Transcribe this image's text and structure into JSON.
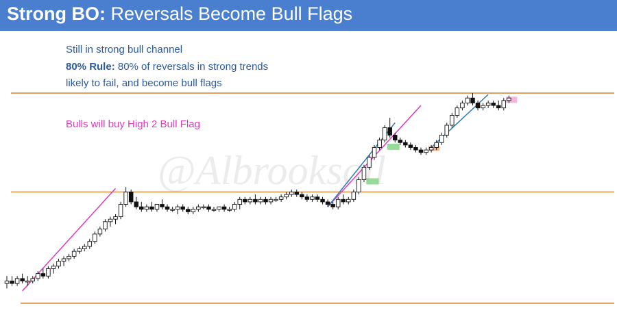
{
  "title": {
    "bold": "Strong BO:",
    "rest": " Reversals Become Bull Flags"
  },
  "notes": {
    "line1": "Still in strong bull channel",
    "rule_bold": "80% Rule:",
    "rule_rest": " 80% of reversals in strong trends",
    "line3": "likely to fail, and become bull flags",
    "pink": "Bulls will buy High 2 Bull Flag"
  },
  "watermark": "@Albrooksall",
  "colors": {
    "title_bg": "#4a7fd0",
    "note_blue": "#2a5aa0",
    "note_pink": "#e03ac0",
    "hline": "#d9822b",
    "pink_line": "#e03ac0",
    "blue_line": "#2a7ab0",
    "green_box": "#7fd07f",
    "orange_box": "#f0a070",
    "pink_box": "#f5a0d8",
    "candle": "#111111"
  },
  "chart_data": {
    "type": "candlestick",
    "title": "Strong BO: Reversals Become Bull Flags",
    "xlabel": "",
    "ylabel": "",
    "ylim": [
      0,
      100
    ],
    "horizontal_levels": [
      -5,
      40,
      80
    ],
    "bars": [
      {
        "o": 3,
        "h": 6,
        "l": 1,
        "c": 4
      },
      {
        "o": 4,
        "h": 6,
        "l": 2,
        "c": 3
      },
      {
        "o": 3,
        "h": 6,
        "l": 2,
        "c": 5
      },
      {
        "o": 5,
        "h": 7,
        "l": 3,
        "c": 4
      },
      {
        "o": 4,
        "h": 6,
        "l": 2,
        "c": 4
      },
      {
        "o": 4,
        "h": 6,
        "l": 3,
        "c": 5
      },
      {
        "o": 5,
        "h": 8,
        "l": 4,
        "c": 7
      },
      {
        "o": 7,
        "h": 9,
        "l": 5,
        "c": 6
      },
      {
        "o": 6,
        "h": 10,
        "l": 5,
        "c": 9
      },
      {
        "o": 9,
        "h": 11,
        "l": 7,
        "c": 10
      },
      {
        "o": 10,
        "h": 13,
        "l": 9,
        "c": 12
      },
      {
        "o": 12,
        "h": 14,
        "l": 10,
        "c": 13
      },
      {
        "o": 13,
        "h": 15,
        "l": 12,
        "c": 14
      },
      {
        "o": 14,
        "h": 17,
        "l": 13,
        "c": 16
      },
      {
        "o": 16,
        "h": 18,
        "l": 15,
        "c": 17
      },
      {
        "o": 17,
        "h": 19,
        "l": 16,
        "c": 18
      },
      {
        "o": 18,
        "h": 21,
        "l": 17,
        "c": 20
      },
      {
        "o": 20,
        "h": 24,
        "l": 19,
        "c": 23
      },
      {
        "o": 23,
        "h": 26,
        "l": 22,
        "c": 25
      },
      {
        "o": 25,
        "h": 29,
        "l": 24,
        "c": 28
      },
      {
        "o": 28,
        "h": 30,
        "l": 26,
        "c": 29
      },
      {
        "o": 29,
        "h": 31,
        "l": 27,
        "c": 30
      },
      {
        "o": 30,
        "h": 36,
        "l": 29,
        "c": 35
      },
      {
        "o": 35,
        "h": 42,
        "l": 34,
        "c": 40
      },
      {
        "o": 40,
        "h": 41,
        "l": 35,
        "c": 36
      },
      {
        "o": 36,
        "h": 38,
        "l": 33,
        "c": 34
      },
      {
        "o": 34,
        "h": 36,
        "l": 32,
        "c": 33
      },
      {
        "o": 33,
        "h": 35,
        "l": 32,
        "c": 34
      },
      {
        "o": 34,
        "h": 36,
        "l": 32,
        "c": 33
      },
      {
        "o": 33,
        "h": 35,
        "l": 32,
        "c": 35
      },
      {
        "o": 35,
        "h": 37,
        "l": 33,
        "c": 34
      },
      {
        "o": 34,
        "h": 35,
        "l": 32,
        "c": 33
      },
      {
        "o": 33,
        "h": 34,
        "l": 32,
        "c": 33
      },
      {
        "o": 33,
        "h": 35,
        "l": 31,
        "c": 34
      },
      {
        "o": 34,
        "h": 35,
        "l": 32,
        "c": 33
      },
      {
        "o": 33,
        "h": 34,
        "l": 31,
        "c": 32
      },
      {
        "o": 32,
        "h": 34,
        "l": 31,
        "c": 33
      },
      {
        "o": 33,
        "h": 35,
        "l": 32,
        "c": 34
      },
      {
        "o": 34,
        "h": 35,
        "l": 33,
        "c": 34
      },
      {
        "o": 34,
        "h": 35,
        "l": 32,
        "c": 33
      },
      {
        "o": 33,
        "h": 34,
        "l": 32,
        "c": 33
      },
      {
        "o": 33,
        "h": 34,
        "l": 32,
        "c": 34
      },
      {
        "o": 34,
        "h": 35,
        "l": 32,
        "c": 33
      },
      {
        "o": 33,
        "h": 34,
        "l": 32,
        "c": 33
      },
      {
        "o": 33,
        "h": 36,
        "l": 32,
        "c": 35
      },
      {
        "o": 35,
        "h": 38,
        "l": 33,
        "c": 37
      },
      {
        "o": 37,
        "h": 38,
        "l": 35,
        "c": 36
      },
      {
        "o": 36,
        "h": 38,
        "l": 35,
        "c": 37
      },
      {
        "o": 37,
        "h": 39,
        "l": 35,
        "c": 36
      },
      {
        "o": 36,
        "h": 38,
        "l": 35,
        "c": 37
      },
      {
        "o": 37,
        "h": 38,
        "l": 35,
        "c": 36
      },
      {
        "o": 36,
        "h": 38,
        "l": 35,
        "c": 37
      },
      {
        "o": 37,
        "h": 38,
        "l": 36,
        "c": 37
      },
      {
        "o": 37,
        "h": 39,
        "l": 36,
        "c": 38
      },
      {
        "o": 38,
        "h": 40,
        "l": 37,
        "c": 39
      },
      {
        "o": 39,
        "h": 41,
        "l": 38,
        "c": 40
      },
      {
        "o": 40,
        "h": 41,
        "l": 38,
        "c": 39
      },
      {
        "o": 39,
        "h": 40,
        "l": 37,
        "c": 38
      },
      {
        "o": 38,
        "h": 39,
        "l": 36,
        "c": 37
      },
      {
        "o": 37,
        "h": 39,
        "l": 36,
        "c": 38
      },
      {
        "o": 38,
        "h": 39,
        "l": 36,
        "c": 37
      },
      {
        "o": 37,
        "h": 38,
        "l": 35,
        "c": 36
      },
      {
        "o": 36,
        "h": 37,
        "l": 34,
        "c": 35
      },
      {
        "o": 35,
        "h": 36,
        "l": 33,
        "c": 34
      },
      {
        "o": 34,
        "h": 38,
        "l": 33,
        "c": 37
      },
      {
        "o": 37,
        "h": 39,
        "l": 35,
        "c": 36
      },
      {
        "o": 36,
        "h": 38,
        "l": 35,
        "c": 37
      },
      {
        "o": 37,
        "h": 41,
        "l": 36,
        "c": 40
      },
      {
        "o": 40,
        "h": 46,
        "l": 39,
        "c": 45
      },
      {
        "o": 45,
        "h": 51,
        "l": 44,
        "c": 50
      },
      {
        "o": 50,
        "h": 55,
        "l": 49,
        "c": 54
      },
      {
        "o": 54,
        "h": 59,
        "l": 53,
        "c": 58
      },
      {
        "o": 58,
        "h": 62,
        "l": 57,
        "c": 61
      },
      {
        "o": 61,
        "h": 67,
        "l": 60,
        "c": 66
      },
      {
        "o": 66,
        "h": 70,
        "l": 62,
        "c": 63
      },
      {
        "o": 63,
        "h": 64,
        "l": 60,
        "c": 61
      },
      {
        "o": 61,
        "h": 62,
        "l": 59,
        "c": 60
      },
      {
        "o": 60,
        "h": 61,
        "l": 58,
        "c": 59
      },
      {
        "o": 59,
        "h": 60,
        "l": 57,
        "c": 58
      },
      {
        "o": 58,
        "h": 59,
        "l": 56,
        "c": 57
      },
      {
        "o": 57,
        "h": 58,
        "l": 55,
        "c": 56
      },
      {
        "o": 56,
        "h": 58,
        "l": 55,
        "c": 57
      },
      {
        "o": 57,
        "h": 59,
        "l": 56,
        "c": 58
      },
      {
        "o": 58,
        "h": 61,
        "l": 57,
        "c": 60
      },
      {
        "o": 60,
        "h": 64,
        "l": 59,
        "c": 63
      },
      {
        "o": 63,
        "h": 68,
        "l": 62,
        "c": 67
      },
      {
        "o": 67,
        "h": 72,
        "l": 66,
        "c": 71
      },
      {
        "o": 71,
        "h": 75,
        "l": 70,
        "c": 74
      },
      {
        "o": 74,
        "h": 77,
        "l": 73,
        "c": 76
      },
      {
        "o": 76,
        "h": 79,
        "l": 75,
        "c": 78
      },
      {
        "o": 78,
        "h": 80,
        "l": 75,
        "c": 76
      },
      {
        "o": 76,
        "h": 77,
        "l": 73,
        "c": 74
      },
      {
        "o": 74,
        "h": 76,
        "l": 73,
        "c": 75
      },
      {
        "o": 75,
        "h": 77,
        "l": 74,
        "c": 76
      },
      {
        "o": 76,
        "h": 77,
        "l": 74,
        "c": 75
      },
      {
        "o": 75,
        "h": 77,
        "l": 73,
        "c": 74
      },
      {
        "o": 74,
        "h": 78,
        "l": 73,
        "c": 77
      },
      {
        "o": 77,
        "h": 79,
        "l": 76,
        "c": 78
      }
    ]
  }
}
